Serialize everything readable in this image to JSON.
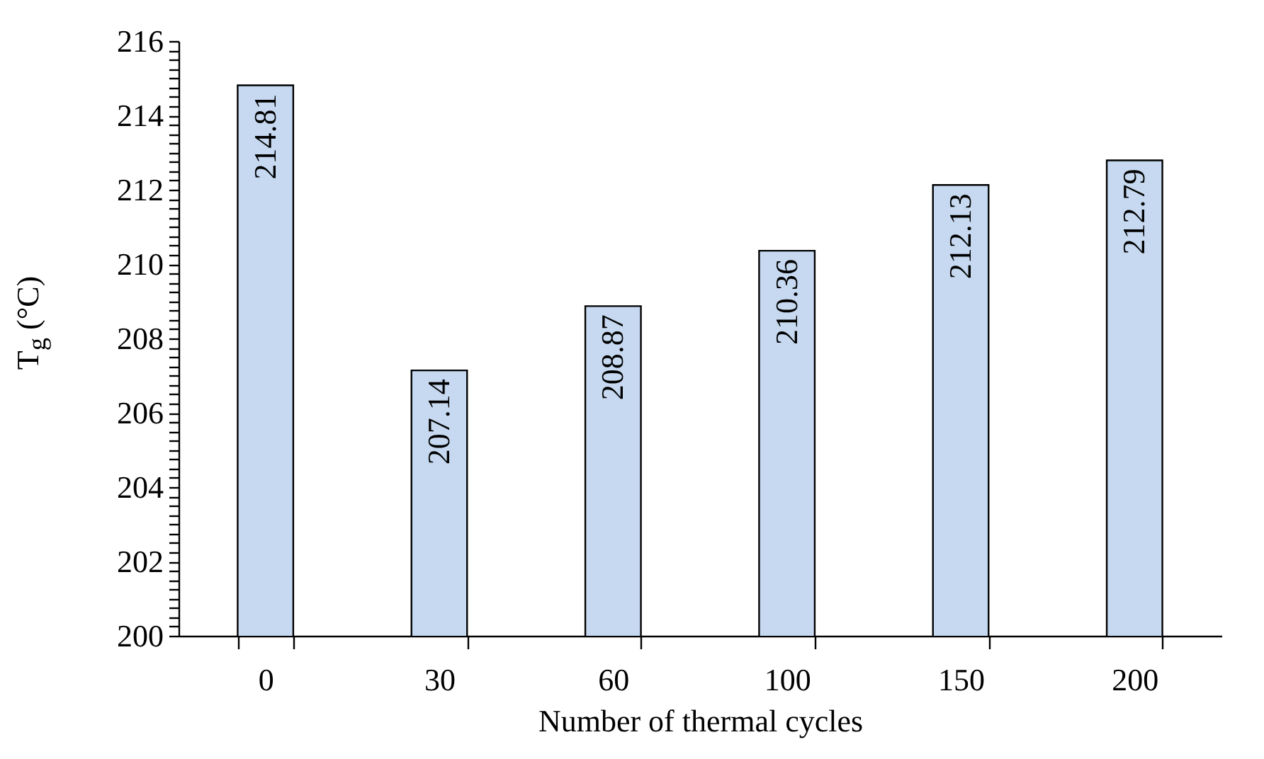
{
  "chart_data": {
    "type": "bar",
    "xlabel": "Number of thermal cycles",
    "ylabel": "T$_{g}$ (°C)",
    "categories": [
      "0",
      "30",
      "60",
      "100",
      "150",
      "200"
    ],
    "values": [
      214.81,
      207.14,
      208.87,
      210.36,
      212.13,
      212.79
    ],
    "color": "#c6d9f0",
    "data_labels": true,
    "grid": false,
    "ylim": [
      200,
      216
    ],
    "yticks": [
      200,
      {
        "value": 200.25,
        "label": null
      },
      {
        "value": 200.5,
        "label": null
      },
      {
        "value": 200.75,
        "label": null
      },
      {
        "value": 201,
        "label": null
      },
      {
        "value": 201.25,
        "label": null
      },
      {
        "value": 201.5,
        "label": null
      },
      {
        "value": 201.75,
        "label": null
      },
      202,
      {
        "value": 202.25,
        "label": null
      },
      {
        "value": 202.5,
        "label": null
      },
      {
        "value": 202.75,
        "label": null
      },
      {
        "value": 203,
        "label": null
      },
      {
        "value": 203.25,
        "label": null
      },
      {
        "value": 203.5,
        "label": null
      },
      {
        "value": 203.75,
        "label": null
      },
      204,
      {
        "value": 204.25,
        "label": null
      },
      {
        "value": 204.5,
        "label": null
      },
      {
        "value": 204.75,
        "label": null
      },
      {
        "value": 205,
        "label": null
      },
      {
        "value": 205.25,
        "label": null
      },
      {
        "value": 205.5,
        "label": null
      },
      {
        "value": 205.75,
        "label": null
      },
      206,
      {
        "value": 206.25,
        "label": null
      },
      {
        "value": 206.5,
        "label": null
      },
      {
        "value": 206.75,
        "label": null
      },
      {
        "value": 207,
        "label": null
      },
      {
        "value": 207.25,
        "label": null
      },
      {
        "value": 207.5,
        "label": null
      },
      {
        "value": 207.75,
        "label": null
      },
      208,
      {
        "value": 208.25,
        "label": null
      },
      {
        "value": 208.5,
        "label": null
      },
      {
        "value": 208.75,
        "label": null
      },
      {
        "value": 209,
        "label": null
      },
      {
        "value": 209.25,
        "label": null
      },
      {
        "value": 209.5,
        "label": null
      },
      {
        "value": 209.75,
        "label": null
      },
      210,
      {
        "value": 210.25,
        "label": null
      },
      {
        "value": 210.5,
        "label": null
      },
      {
        "value": 210.75,
        "label": null
      },
      {
        "value": 211,
        "label": null
      },
      {
        "value": 211.25,
        "label": null
      },
      {
        "value": 211.5,
        "label": null
      },
      {
        "value": 211.75,
        "label": null
      },
      212,
      {
        "value": 212.25,
        "label": null
      },
      {
        "value": 212.5,
        "label": null
      },
      {
        "value": 212.75,
        "label": null
      },
      {
        "value": 213,
        "label": null
      },
      {
        "value": 213.25,
        "label": null
      },
      {
        "value": 213.5,
        "label": null
      },
      {
        "value": 213.75,
        "label": null
      },
      214,
      {
        "value": 214.25,
        "label": null
      },
      {
        "value": 214.5,
        "label": null
      },
      {
        "value": 214.75,
        "label": null
      },
      {
        "value": 215,
        "label": null
      },
      {
        "value": 215.25,
        "label": null
      },
      {
        "value": 215.5,
        "label": null
      },
      {
        "value": 215.75,
        "label": null
      },
      216
    ]
  }
}
